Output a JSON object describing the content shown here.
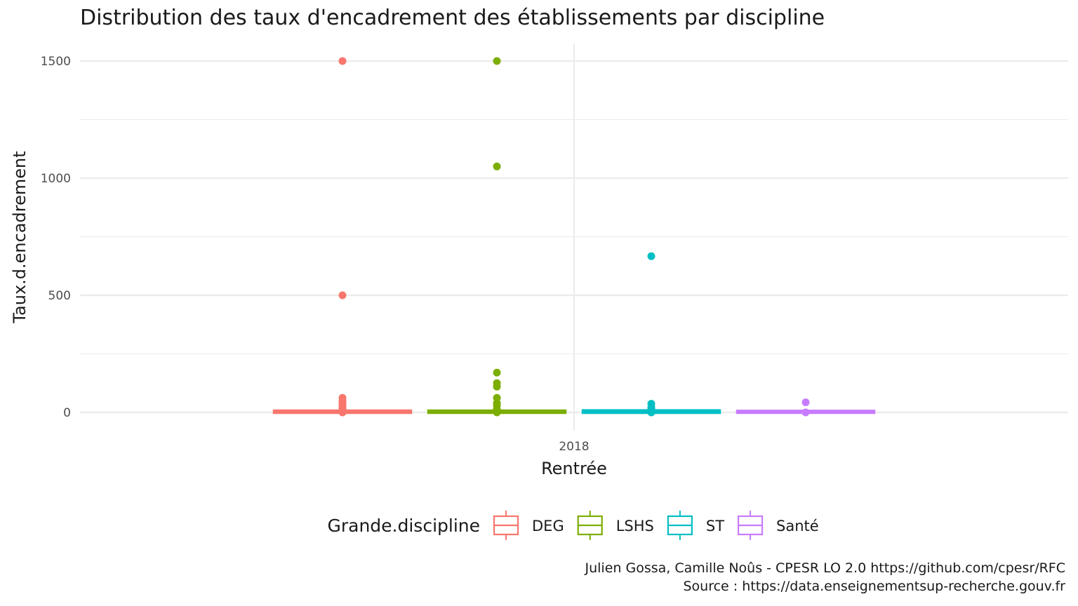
{
  "title": "Distribution des taux d'encadrement des établissements par discipline",
  "caption": {
    "line1": "Julien Gossa, Camille Noûs - CPESR LO 2.0 https://github.com/cpesr/RFC",
    "line2": "Source : https://data.enseignementsup-recherche.gouv.fr"
  },
  "chart_data": {
    "type": "box",
    "title": "Distribution des taux d'encadrement des établissements par discipline",
    "xlabel": "Rentrée",
    "ylabel": "Taux.d.encadrement",
    "categories": [
      "2018"
    ],
    "ylim": [
      -75,
      1575
    ],
    "yticks": [
      0,
      500,
      1000,
      1500
    ],
    "grid": true,
    "legend": {
      "title": "Grande.discipline",
      "position": "bottom"
    },
    "series": [
      {
        "name": "DEG",
        "color": "#F8766D",
        "box": {
          "q1": 0,
          "median": 3,
          "q3": 6
        },
        "points": [
          1500,
          500,
          62,
          48,
          38,
          28,
          20,
          12,
          5,
          0
        ]
      },
      {
        "name": "LSHS",
        "color": "#7CAE00",
        "box": {
          "q1": 0,
          "median": 3,
          "q3": 6
        },
        "points": [
          1500,
          1050,
          170,
          125,
          110,
          62,
          40,
          30,
          15,
          0
        ]
      },
      {
        "name": "ST",
        "color": "#00BFC4",
        "box": {
          "q1": 0,
          "median": 3,
          "q3": 7
        },
        "points": [
          667,
          37,
          22,
          15,
          5,
          0
        ]
      },
      {
        "name": "Santé",
        "color": "#C77CFF",
        "box": {
          "q1": 0,
          "median": 3,
          "q3": 5
        },
        "points": [
          43,
          0
        ]
      }
    ]
  }
}
